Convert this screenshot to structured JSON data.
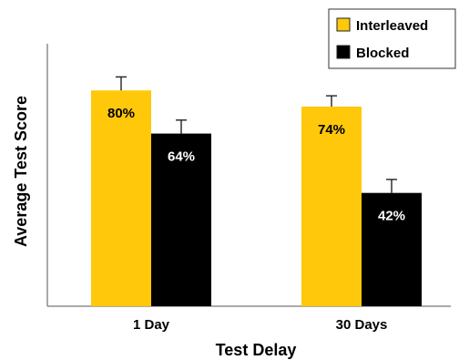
{
  "chart_data": {
    "type": "bar",
    "title": "",
    "xlabel": "Test Delay",
    "ylabel": "Average Test Score",
    "categories": [
      "1 Day",
      "30 Days"
    ],
    "ylim": [
      0,
      100
    ],
    "grid": false,
    "legend_position": "top-right",
    "series": [
      {
        "name": "Interleaved",
        "values": [
          80,
          74
        ],
        "labels": [
          "80%",
          "74%"
        ],
        "error": [
          5,
          4
        ],
        "color": "#FFC80A",
        "label_color": "#000000"
      },
      {
        "name": "Blocked",
        "values": [
          64,
          42
        ],
        "labels": [
          "64%",
          "42%"
        ],
        "error": [
          5,
          5
        ],
        "color": "#000000",
        "label_color": "#ffffff"
      }
    ]
  },
  "colors": {
    "axis": "#555555",
    "error_bar": "#222222"
  }
}
